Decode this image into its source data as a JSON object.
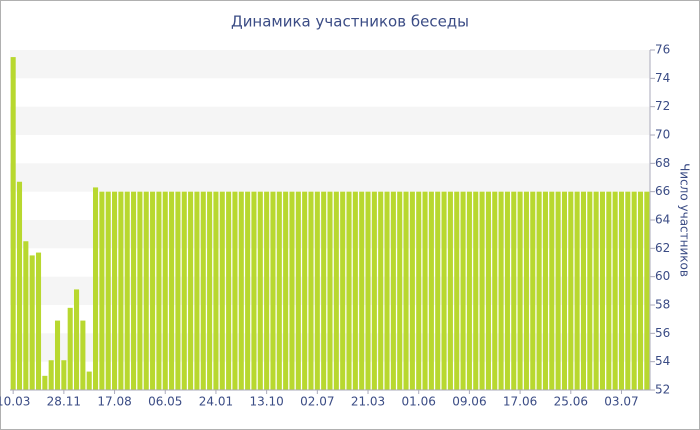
{
  "chart_data": {
    "type": "bar",
    "title": "Динамика участников беседы",
    "y_label": "Число участников",
    "categories": [
      "10.03",
      null,
      null,
      null,
      null,
      null,
      null,
      null,
      "28.11",
      null,
      null,
      null,
      null,
      null,
      null,
      null,
      "17.08",
      null,
      null,
      null,
      null,
      null,
      null,
      null,
      "06.05",
      null,
      null,
      null,
      null,
      null,
      null,
      null,
      "24.01",
      null,
      null,
      null,
      null,
      null,
      null,
      null,
      "13.10",
      null,
      null,
      null,
      null,
      null,
      null,
      null,
      "02.07",
      null,
      null,
      null,
      null,
      null,
      null,
      null,
      "21.03",
      null,
      null,
      null,
      null,
      null,
      null,
      null,
      "01.06",
      null,
      null,
      null,
      null,
      null,
      null,
      null,
      "09.06",
      null,
      null,
      null,
      null,
      null,
      null,
      null,
      "17.06",
      null,
      null,
      null,
      null,
      null,
      null,
      null,
      "25.06",
      null,
      null,
      null,
      null,
      null,
      null,
      null,
      "03.07",
      null,
      null,
      null,
      null
    ],
    "values": [
      75.5,
      66.7,
      62.5,
      61.5,
      61.7,
      53.0,
      54.1,
      56.9,
      54.1,
      57.8,
      59.1,
      56.9,
      53.3,
      66.3,
      66,
      66,
      66,
      66,
      66,
      66,
      66,
      66,
      66,
      66,
      66,
      66,
      66,
      66,
      66,
      66,
      66,
      66,
      66,
      66,
      66,
      66,
      66,
      66,
      66,
      66,
      66,
      66,
      66,
      66,
      66,
      66,
      66,
      66,
      66,
      66,
      66,
      66,
      66,
      66,
      66,
      66,
      66,
      66,
      66,
      66,
      66,
      66,
      66,
      66,
      66,
      66,
      66,
      66,
      66,
      66,
      66,
      66,
      66,
      66,
      66,
      66,
      66,
      66,
      66,
      66,
      66,
      66,
      66,
      66,
      66,
      66,
      66,
      66,
      66,
      66,
      66,
      66,
      66,
      66,
      66,
      66,
      66,
      66,
      66,
      66,
      66
    ],
    "color": "#b8d82f",
    "ylim": [
      52,
      76
    ],
    "yticks": [
      52,
      54,
      56,
      58,
      60,
      62,
      64,
      66,
      68,
      70,
      72,
      74,
      76
    ],
    "grid": "bands",
    "y_axis_side": "right"
  }
}
